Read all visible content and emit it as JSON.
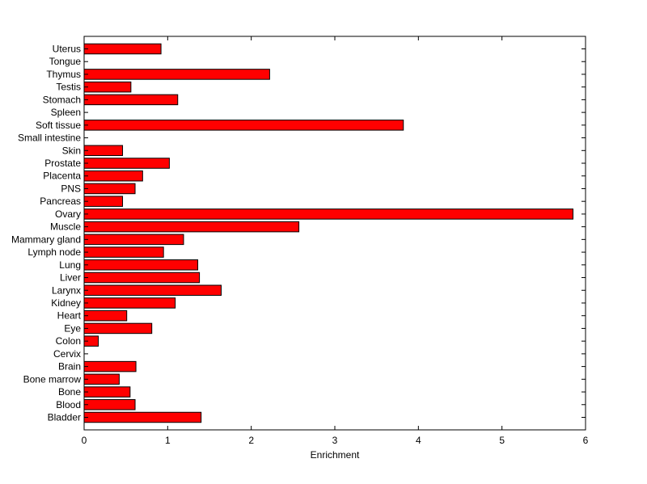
{
  "chart_data": {
    "type": "bar",
    "orientation": "horizontal",
    "categories": [
      "Uterus",
      "Tongue",
      "Thymus",
      "Testis",
      "Stomach",
      "Spleen",
      "Soft tissue",
      "Small intestine",
      "Skin",
      "Prostate",
      "Placenta",
      "PNS",
      "Pancreas",
      "Ovary",
      "Muscle",
      "Mammary gland",
      "Lymph node",
      "Lung",
      "Liver",
      "Larynx",
      "Kidney",
      "Heart",
      "Eye",
      "Colon",
      "Cervix",
      "Brain",
      "Bone marrow",
      "Bone",
      "Blood",
      "Bladder"
    ],
    "values": [
      0.92,
      0,
      2.22,
      0.56,
      1.12,
      0,
      3.82,
      0,
      0.46,
      1.02,
      0.7,
      0.61,
      0.46,
      5.85,
      2.57,
      1.19,
      0.95,
      1.36,
      1.38,
      1.64,
      1.09,
      0.51,
      0.81,
      0.17,
      0,
      0.62,
      0.42,
      0.55,
      0.61,
      1.4
    ],
    "xlabel": "Enrichment",
    "ylabel": "",
    "title": "",
    "xlim": [
      0,
      6
    ],
    "xticks": [
      "0",
      "1",
      "2",
      "3",
      "4",
      "5",
      "6"
    ],
    "grid": false,
    "colors": {
      "bar_fill": "#ff0000",
      "bar_stroke": "#000000",
      "axis": "#000000"
    }
  }
}
